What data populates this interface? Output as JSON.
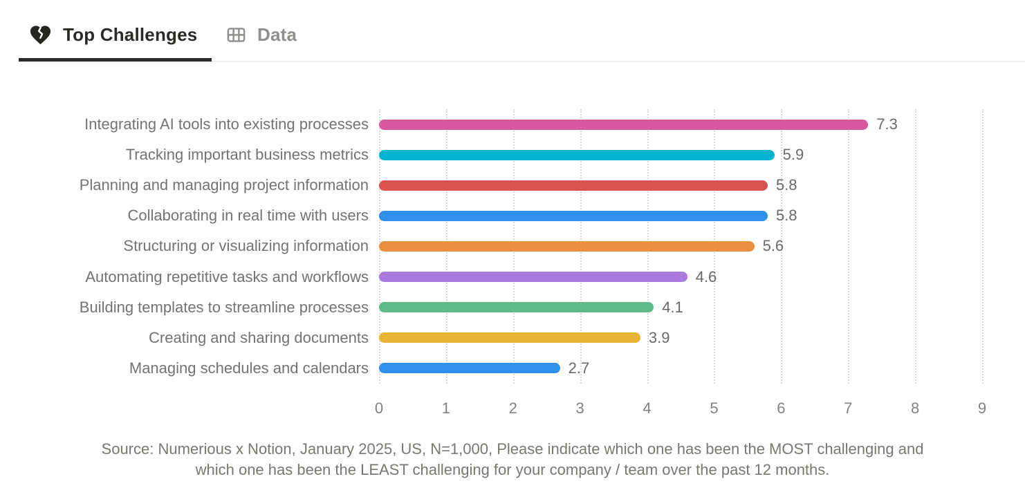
{
  "tabs": [
    {
      "label": "Top Challenges",
      "icon": "broken-heart-icon",
      "active": true
    },
    {
      "label": "Data",
      "icon": "table-icon",
      "active": false
    }
  ],
  "chart_data": {
    "type": "bar",
    "orientation": "horizontal",
    "categories": [
      "Integrating AI tools into existing processes",
      "Tracking important business metrics",
      "Planning and managing project information",
      "Collaborating in real time with users",
      "Structuring or visualizing information",
      "Automating repetitive tasks and workflows",
      "Building templates to streamline processes",
      "Creating and sharing documents",
      "Managing schedules and calendars"
    ],
    "values": [
      7.3,
      5.9,
      5.8,
      5.8,
      5.6,
      4.6,
      4.1,
      3.9,
      2.7
    ],
    "bar_colors": [
      "#d9579f",
      "#04b4d0",
      "#d95450",
      "#2f90ea",
      "#ea8f3e",
      "#a87ade",
      "#5fba8a",
      "#e8b337",
      "#2f90ea"
    ],
    "xlim": [
      0,
      9
    ],
    "x_ticks": [
      0,
      1,
      2,
      3,
      4,
      5,
      6,
      7,
      8,
      9
    ],
    "grid": "dotted-vertical-gridlines",
    "value_labels": true,
    "title": "",
    "xlabel": "",
    "ylabel": ""
  },
  "colors": {
    "active_tab_text": "#2b2a26",
    "inactive_tab_text": "#8f8e8a",
    "underline": "#2b2a26",
    "divider": "#ececea",
    "label_text": "#737370",
    "value_text": "#696966",
    "tick_text": "#82817d",
    "source_text": "#787771",
    "gridline": "#d9d9d8"
  },
  "source": {
    "line1": "Source: Numerious x Notion, January 2025, US, N=1,000, Please indicate which one has been the MOST challenging and",
    "line2": "which one has been the LEAST challenging for your company /  team over the past 12 months."
  }
}
